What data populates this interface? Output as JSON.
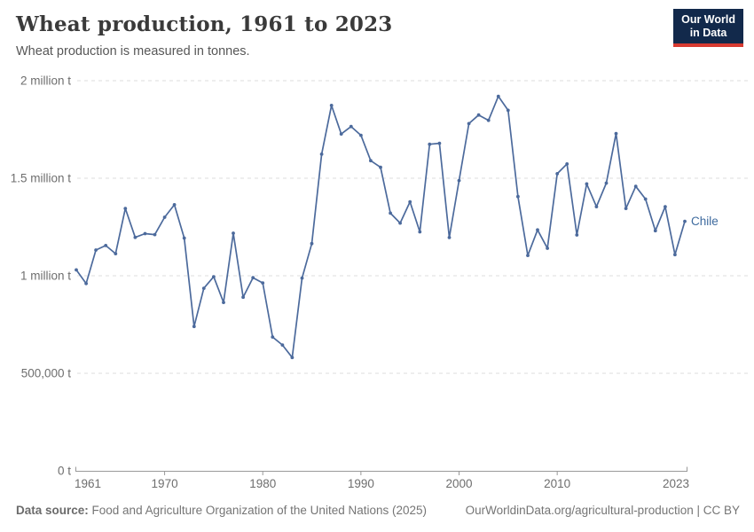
{
  "header": {
    "title": "Wheat production, 1961 to 2023",
    "subtitle": "Wheat production is measured in tonnes.",
    "logo": {
      "line1": "Our World",
      "line2": "in Data"
    }
  },
  "chart_data": {
    "type": "line",
    "title": "Wheat production, 1961 to 2023",
    "ylabel": "",
    "xlabel": "",
    "unit": "tonnes",
    "grid": "horizontal-dashed",
    "legend_position": "end-of-line-label",
    "xlim": [
      1961,
      2023
    ],
    "ylim": [
      0,
      2000000
    ],
    "x_ticks": [
      1961,
      1970,
      1980,
      1990,
      2000,
      2010,
      2023
    ],
    "y_ticks": [
      {
        "value": 0,
        "label": "0 t"
      },
      {
        "value": 500000,
        "label": "500,000 t"
      },
      {
        "value": 1000000,
        "label": "1 million t"
      },
      {
        "value": 1500000,
        "label": "1.5 million t"
      },
      {
        "value": 2000000,
        "label": "2 million t"
      }
    ],
    "series": [
      {
        "name": "Chile",
        "color": "#4C6A9C",
        "label_color": "#3D6A9E",
        "x": [
          1961,
          1962,
          1963,
          1964,
          1965,
          1966,
          1967,
          1968,
          1969,
          1970,
          1971,
          1972,
          1973,
          1974,
          1975,
          1976,
          1977,
          1978,
          1979,
          1980,
          1981,
          1982,
          1983,
          1984,
          1985,
          1986,
          1987,
          1988,
          1989,
          1990,
          1991,
          1992,
          1993,
          1994,
          1995,
          1996,
          1997,
          1998,
          1999,
          2000,
          2001,
          2002,
          2003,
          2004,
          2005,
          2006,
          2007,
          2008,
          2009,
          2010,
          2011,
          2012,
          2013,
          2014,
          2015,
          2016,
          2017,
          2018,
          2019,
          2020,
          2021,
          2022,
          2023
        ],
        "values": [
          1030000,
          960000,
          1132000,
          1155000,
          1113000,
          1345000,
          1197000,
          1216000,
          1211000,
          1300000,
          1364000,
          1193000,
          740000,
          936000,
          995000,
          863000,
          1218000,
          890000,
          990000,
          963000,
          686000,
          645000,
          581000,
          988000,
          1165000,
          1623000,
          1873000,
          1727000,
          1765000,
          1720000,
          1590000,
          1556000,
          1321000,
          1270000,
          1379000,
          1225000,
          1674000,
          1679000,
          1196000,
          1488000,
          1780000,
          1824000,
          1797000,
          1920000,
          1848000,
          1406000,
          1104000,
          1235000,
          1141000,
          1523000,
          1573000,
          1209000,
          1471000,
          1354000,
          1475000,
          1729000,
          1345000,
          1458000,
          1393000,
          1231000,
          1354000,
          1108000,
          1279000
        ]
      }
    ]
  },
  "footer": {
    "source_label": "Data source:",
    "source_text": " Food and Agriculture Organization of the United Nations (2025)",
    "credit": "OurWorldinData.org/agricultural-production | CC BY"
  },
  "colors": {
    "line": "#4C6A9C",
    "entity_label": "#3D6A9E",
    "gridline": "#dedede",
    "axis": "#999999",
    "tick_text": "#6e6e6e",
    "logo_bg": "#12294B",
    "logo_stripe": "#D73A31"
  }
}
